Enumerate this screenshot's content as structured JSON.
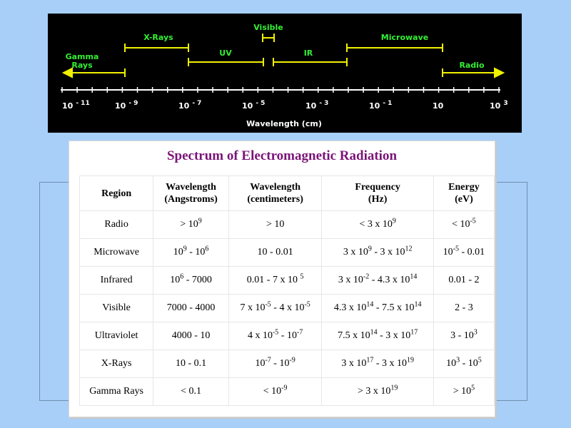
{
  "spectrum": {
    "regions": {
      "visible": "Visible",
      "xrays": "X-Rays",
      "microwave": "Microwave",
      "gamma": [
        "Gamma",
        "Rays"
      ],
      "uv": "UV",
      "ir": "IR",
      "radio": "Radio"
    },
    "ticks": [
      {
        "base": "10",
        "exp": "- 11"
      },
      {
        "base": "10",
        "exp": "- 9"
      },
      {
        "base": "10",
        "exp": "- 7"
      },
      {
        "base": "10",
        "exp": "- 5"
      },
      {
        "base": "10",
        "exp": "- 3"
      },
      {
        "base": "10",
        "exp": "- 1"
      },
      {
        "base": "10",
        "exp": ""
      },
      {
        "base": "10",
        "exp": "3"
      }
    ],
    "axis_label": "Wavelength (cm)",
    "colors": {
      "background": "#000000",
      "bars": "#f0f000",
      "labels": "#33ee33",
      "axis": "#ffffff"
    }
  },
  "table": {
    "title": "Spectrum of Electromagnetic Radiation",
    "title_color": "#7a1478",
    "headers": [
      [
        "Region"
      ],
      [
        "Wavelength",
        "(Angstroms)"
      ],
      [
        "Wavelength",
        "(centimeters)"
      ],
      [
        "Frequency",
        "(Hz)"
      ],
      [
        "Energy",
        "(eV)"
      ]
    ],
    "rows": [
      [
        [
          "Radio"
        ],
        [
          "> 10",
          "9"
        ],
        [
          "> 10"
        ],
        [
          "< 3 x 10",
          "9"
        ],
        [
          "< 10",
          "-5"
        ]
      ],
      [
        [
          "Microwave"
        ],
        [
          "10",
          "9",
          " - 10",
          "6"
        ],
        [
          "10 - 0.01"
        ],
        [
          "3 x 10",
          "9",
          " - 3 x 10",
          "12"
        ],
        [
          "10",
          "-5",
          " - 0.01"
        ]
      ],
      [
        [
          "Infrared"
        ],
        [
          "10",
          "6",
          " - 7000"
        ],
        [
          "0.01 - 7 x 10 ",
          "5"
        ],
        [
          "3 x 10",
          "-2",
          " - 4.3 x 10",
          "14"
        ],
        [
          "0.01 - 2"
        ]
      ],
      [
        [
          "Visible"
        ],
        [
          "7000 - 4000"
        ],
        [
          "7 x 10",
          "-5",
          " - 4 x 10",
          "-5"
        ],
        [
          "4.3 x 10",
          "14",
          " - 7.5 x 10",
          "14"
        ],
        [
          "2 - 3"
        ]
      ],
      [
        [
          "Ultraviolet"
        ],
        [
          "4000 - 10"
        ],
        [
          "4 x 10",
          "-5",
          " - 10",
          "-7"
        ],
        [
          "7.5 x 10",
          "14",
          " - 3 x 10",
          "17"
        ],
        [
          "3 - 10",
          "3"
        ]
      ],
      [
        [
          "X-Rays"
        ],
        [
          "10 - 0.1"
        ],
        [
          "10",
          "-7",
          " - 10",
          "-9"
        ],
        [
          "3 x 10",
          "17",
          " - 3 x 10",
          "19"
        ],
        [
          "10",
          "3",
          " - 10",
          "5"
        ]
      ],
      [
        [
          "Gamma Rays"
        ],
        [
          "< 0.1"
        ],
        [
          "< 10",
          "-9"
        ],
        [
          "> 3 x 10",
          "19"
        ],
        [
          "> 10",
          "5"
        ]
      ]
    ]
  }
}
